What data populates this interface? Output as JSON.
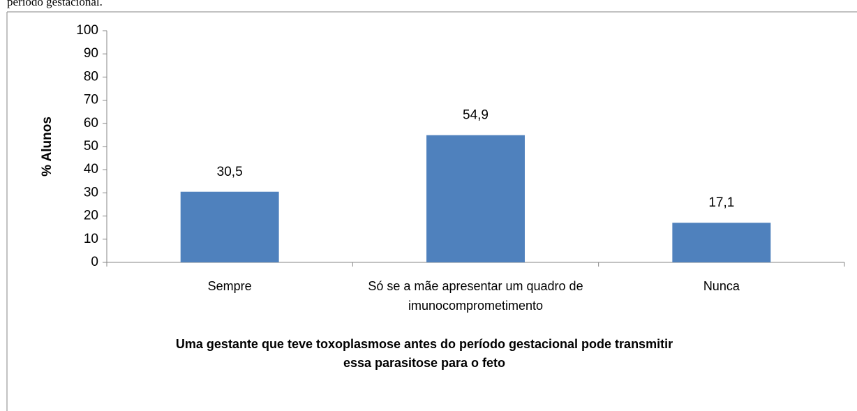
{
  "caption": "período gestacional.",
  "chart_data": {
    "type": "bar",
    "categories": [
      "Sempre",
      "Só se a mãe apresentar um quadro de imunocomprometimento",
      "Nunca"
    ],
    "values": [
      30.5,
      54.9,
      17.1
    ],
    "value_labels": [
      "30,5",
      "54,9",
      "17,1"
    ],
    "color": "#4f81bd",
    "ylabel": "% Alunos",
    "xlabel": [
      "Uma gestante que teve toxoplasmose antes do período gestacional pode transmitir",
      "essa parasitose para o feto"
    ],
    "ylim": [
      0,
      100
    ],
    "yticks": [
      0,
      10,
      20,
      30,
      40,
      50,
      60,
      70,
      80,
      90,
      100
    ],
    "grid": false
  }
}
